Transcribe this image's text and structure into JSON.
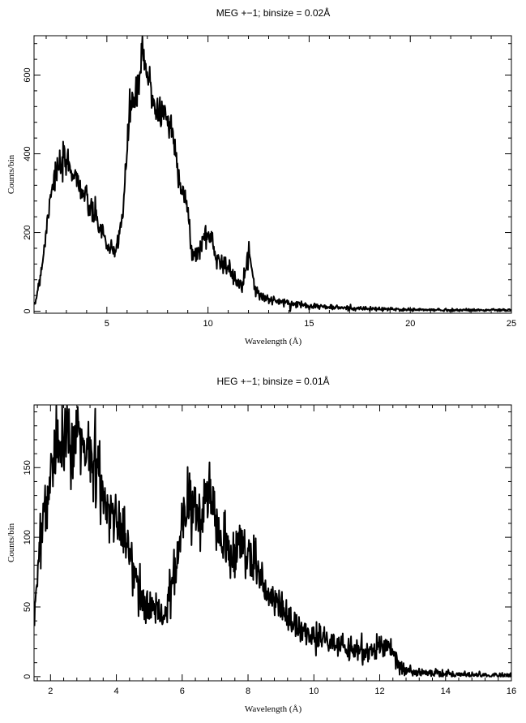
{
  "chart_data": [
    {
      "type": "line",
      "title": "MEG +−1; binsize = 0.02Å",
      "xlabel": "Wavelength (Å)",
      "ylabel": "Counts/bin",
      "xlim": [
        1.4,
        25
      ],
      "ylim": [
        -5,
        700
      ],
      "xticks": [
        5,
        10,
        15,
        20,
        25
      ],
      "yticks": [
        0,
        200,
        400,
        600
      ],
      "error_bars": true,
      "series": [
        {
          "x": [
            1.4,
            1.6,
            1.8,
            2.0,
            2.2,
            2.4,
            2.6,
            2.8,
            3.0,
            3.2,
            3.4,
            3.6,
            3.8,
            4.0,
            4.2,
            4.4,
            4.6,
            4.8,
            5.0,
            5.2,
            5.4,
            5.6,
            5.8,
            6.0,
            6.1,
            6.2,
            6.4,
            6.6,
            6.75,
            6.85,
            7.0,
            7.2,
            7.4,
            7.6,
            7.8,
            8.0,
            8.2,
            8.4,
            8.6,
            8.8,
            9.0,
            9.2,
            9.4,
            9.6,
            9.8,
            10.0,
            10.2,
            10.4,
            10.6,
            10.8,
            11.0,
            11.2,
            11.4,
            11.6,
            11.8,
            12.0,
            12.15,
            12.3,
            12.6,
            13.0,
            13.5,
            14.0,
            14.5,
            15.0,
            16.0,
            17.0,
            18.0,
            19.0,
            20.0,
            22.0,
            25.0
          ],
          "values": [
            5,
            60,
            120,
            200,
            300,
            340,
            360,
            370,
            380,
            365,
            350,
            330,
            300,
            280,
            260,
            240,
            220,
            200,
            170,
            150,
            145,
            200,
            250,
            400,
            500,
            530,
            540,
            560,
            680,
            620,
            600,
            560,
            520,
            500,
            510,
            490,
            460,
            400,
            340,
            300,
            250,
            150,
            140,
            160,
            190,
            195,
            180,
            140,
            130,
            120,
            110,
            90,
            80,
            75,
            90,
            140,
            130,
            60,
            40,
            30,
            25,
            20,
            18,
            15,
            10,
            8,
            6,
            5,
            4,
            3,
            3
          ]
        }
      ]
    },
    {
      "type": "line",
      "title": "HEG +−1; binsize = 0.01Å",
      "xlabel": "Wavelength (Å)",
      "ylabel": "Counts/bin",
      "xlim": [
        1.5,
        16
      ],
      "ylim": [
        -3,
        195
      ],
      "xticks": [
        2,
        4,
        6,
        8,
        10,
        12,
        14,
        16
      ],
      "yticks": [
        0,
        50,
        100,
        150
      ],
      "error_bars": true,
      "series": [
        {
          "x": [
            1.5,
            1.6,
            1.8,
            2.0,
            2.2,
            2.4,
            2.6,
            2.8,
            3.0,
            3.2,
            3.4,
            3.6,
            3.8,
            4.0,
            4.2,
            4.4,
            4.6,
            4.8,
            5.0,
            5.2,
            5.4,
            5.6,
            5.8,
            6.0,
            6.2,
            6.4,
            6.6,
            6.7,
            6.8,
            7.0,
            7.2,
            7.4,
            7.6,
            7.8,
            8.0,
            8.2,
            8.4,
            8.6,
            8.8,
            9.0,
            9.2,
            9.4,
            9.6,
            9.8,
            10.0,
            10.4,
            10.8,
            11.2,
            11.6,
            12.0,
            12.2,
            12.4,
            12.6,
            12.8,
            13.0,
            14.0,
            15.0,
            16.0
          ],
          "values": [
            40,
            70,
            120,
            140,
            165,
            175,
            170,
            172,
            168,
            160,
            150,
            130,
            120,
            110,
            100,
            85,
            70,
            55,
            45,
            50,
            40,
            55,
            75,
            110,
            120,
            125,
            105,
            140,
            135,
            110,
            100,
            95,
            90,
            95,
            90,
            80,
            70,
            60,
            55,
            50,
            45,
            40,
            35,
            30,
            28,
            25,
            22,
            20,
            18,
            20,
            25,
            15,
            8,
            4,
            3,
            2,
            1,
            1
          ]
        }
      ]
    }
  ]
}
